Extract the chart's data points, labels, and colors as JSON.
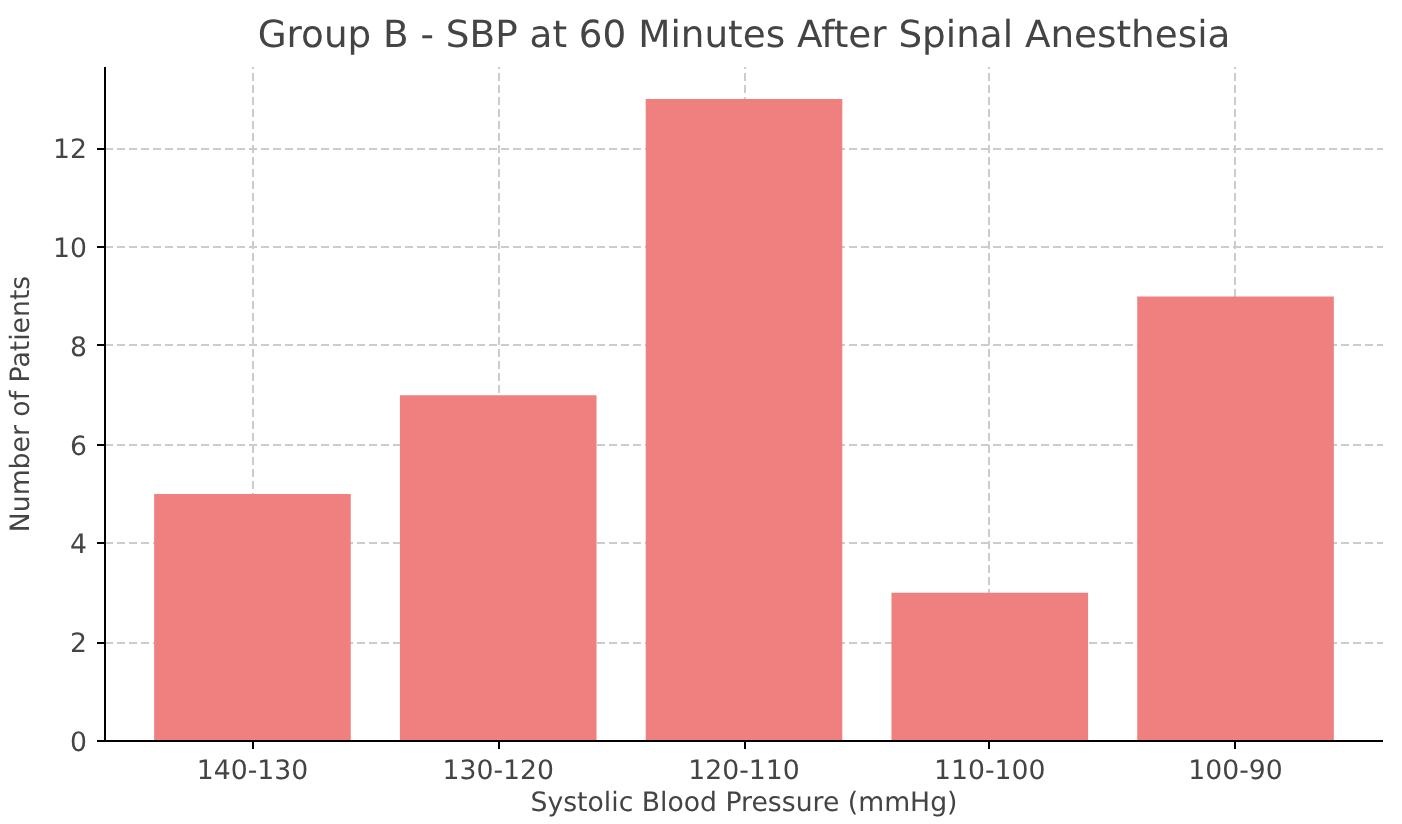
{
  "chart_data": {
    "type": "bar",
    "title": "Group B - SBP at 60 Minutes After Spinal Anesthesia",
    "xlabel": "Systolic Blood Pressure (mmHg)",
    "ylabel": "Number of Patients",
    "categories": [
      "140-130",
      "130-120",
      "120-110",
      "110-100",
      "100-90"
    ],
    "values": [
      5,
      7,
      13,
      3,
      9
    ],
    "color": "#f08080",
    "ylim": [
      0,
      13.65
    ],
    "yticks": [
      0,
      2,
      4,
      6,
      8,
      10,
      12
    ],
    "grid": true
  }
}
